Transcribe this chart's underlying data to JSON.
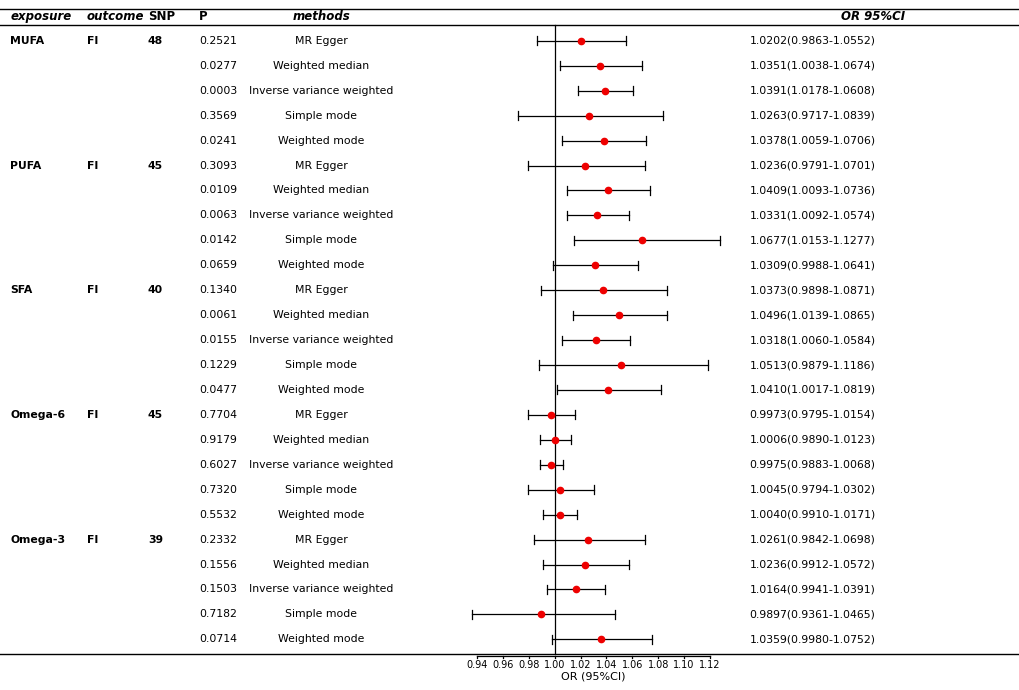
{
  "rows": [
    {
      "exposure": "MUFA",
      "outcome": "FI",
      "snp": "48",
      "p": "0.2521",
      "method": "MR Egger",
      "or": 1.0202,
      "ci_lo": 0.9863,
      "ci_hi": 1.0552,
      "ci_str": "1.0202(0.9863-1.0552)"
    },
    {
      "exposure": "",
      "outcome": "",
      "snp": "",
      "p": "0.0277",
      "method": "Weighted median",
      "or": 1.0351,
      "ci_lo": 1.0038,
      "ci_hi": 1.0674,
      "ci_str": "1.0351(1.0038-1.0674)"
    },
    {
      "exposure": "",
      "outcome": "",
      "snp": "",
      "p": "0.0003",
      "method": "Inverse variance weighted",
      "or": 1.0391,
      "ci_lo": 1.0178,
      "ci_hi": 1.0608,
      "ci_str": "1.0391(1.0178-1.0608)"
    },
    {
      "exposure": "",
      "outcome": "",
      "snp": "",
      "p": "0.3569",
      "method": "Simple mode",
      "or": 1.0263,
      "ci_lo": 0.9717,
      "ci_hi": 1.0839,
      "ci_str": "1.0263(0.9717-1.0839)"
    },
    {
      "exposure": "",
      "outcome": "",
      "snp": "",
      "p": "0.0241",
      "method": "Weighted mode",
      "or": 1.0378,
      "ci_lo": 1.0059,
      "ci_hi": 1.0706,
      "ci_str": "1.0378(1.0059-1.0706)"
    },
    {
      "exposure": "PUFA",
      "outcome": "FI",
      "snp": "45",
      "p": "0.3093",
      "method": "MR Egger",
      "or": 1.0236,
      "ci_lo": 0.9791,
      "ci_hi": 1.0701,
      "ci_str": "1.0236(0.9791-1.0701)"
    },
    {
      "exposure": "",
      "outcome": "",
      "snp": "",
      "p": "0.0109",
      "method": "Weighted median",
      "or": 1.0409,
      "ci_lo": 1.0093,
      "ci_hi": 1.0736,
      "ci_str": "1.0409(1.0093-1.0736)"
    },
    {
      "exposure": "",
      "outcome": "",
      "snp": "",
      "p": "0.0063",
      "method": "Inverse variance weighted",
      "or": 1.0331,
      "ci_lo": 1.0092,
      "ci_hi": 1.0574,
      "ci_str": "1.0331(1.0092-1.0574)"
    },
    {
      "exposure": "",
      "outcome": "",
      "snp": "",
      "p": "0.0142",
      "method": "Simple mode",
      "or": 1.0677,
      "ci_lo": 1.0153,
      "ci_hi": 1.1277,
      "ci_str": "1.0677(1.0153-1.1277)"
    },
    {
      "exposure": "",
      "outcome": "",
      "snp": "",
      "p": "0.0659",
      "method": "Weighted mode",
      "or": 1.0309,
      "ci_lo": 0.9988,
      "ci_hi": 1.0641,
      "ci_str": "1.0309(0.9988-1.0641)"
    },
    {
      "exposure": "SFA",
      "outcome": "FI",
      "snp": "40",
      "p": "0.1340",
      "method": "MR Egger",
      "or": 1.0373,
      "ci_lo": 0.9898,
      "ci_hi": 1.0871,
      "ci_str": "1.0373(0.9898-1.0871)"
    },
    {
      "exposure": "",
      "outcome": "",
      "snp": "",
      "p": "0.0061",
      "method": "Weighted median",
      "or": 1.0496,
      "ci_lo": 1.0139,
      "ci_hi": 1.0865,
      "ci_str": "1.0496(1.0139-1.0865)"
    },
    {
      "exposure": "",
      "outcome": "",
      "snp": "",
      "p": "0.0155",
      "method": "Inverse variance weighted",
      "or": 1.0318,
      "ci_lo": 1.006,
      "ci_hi": 1.0584,
      "ci_str": "1.0318(1.0060-1.0584)"
    },
    {
      "exposure": "",
      "outcome": "",
      "snp": "",
      "p": "0.1229",
      "method": "Simple mode",
      "or": 1.0513,
      "ci_lo": 0.9879,
      "ci_hi": 1.1186,
      "ci_str": "1.0513(0.9879-1.1186)"
    },
    {
      "exposure": "",
      "outcome": "",
      "snp": "",
      "p": "0.0477",
      "method": "Weighted mode",
      "or": 1.041,
      "ci_lo": 1.0017,
      "ci_hi": 1.0819,
      "ci_str": "1.0410(1.0017-1.0819)"
    },
    {
      "exposure": "Omega-6",
      "outcome": "FI",
      "snp": "45",
      "p": "0.7704",
      "method": "MR Egger",
      "or": 0.9973,
      "ci_lo": 0.9795,
      "ci_hi": 1.0154,
      "ci_str": "0.9973(0.9795-1.0154)"
    },
    {
      "exposure": "",
      "outcome": "",
      "snp": "",
      "p": "0.9179",
      "method": "Weighted median",
      "or": 1.0006,
      "ci_lo": 0.989,
      "ci_hi": 1.0123,
      "ci_str": "1.0006(0.9890-1.0123)"
    },
    {
      "exposure": "",
      "outcome": "",
      "snp": "",
      "p": "0.6027",
      "method": "Inverse variance weighted",
      "or": 0.9975,
      "ci_lo": 0.9883,
      "ci_hi": 1.0068,
      "ci_str": "0.9975(0.9883-1.0068)"
    },
    {
      "exposure": "",
      "outcome": "",
      "snp": "",
      "p": "0.7320",
      "method": "Simple mode",
      "or": 1.0045,
      "ci_lo": 0.9794,
      "ci_hi": 1.0302,
      "ci_str": "1.0045(0.9794-1.0302)"
    },
    {
      "exposure": "",
      "outcome": "",
      "snp": "",
      "p": "0.5532",
      "method": "Weighted mode",
      "or": 1.004,
      "ci_lo": 0.991,
      "ci_hi": 1.0171,
      "ci_str": "1.0040(0.9910-1.0171)"
    },
    {
      "exposure": "Omega-3",
      "outcome": "FI",
      "snp": "39",
      "p": "0.2332",
      "method": "MR Egger",
      "or": 1.0261,
      "ci_lo": 0.9842,
      "ci_hi": 1.0698,
      "ci_str": "1.0261(0.9842-1.0698)"
    },
    {
      "exposure": "",
      "outcome": "",
      "snp": "",
      "p": "0.1556",
      "method": "Weighted median",
      "or": 1.0236,
      "ci_lo": 0.9912,
      "ci_hi": 1.0572,
      "ci_str": "1.0236(0.9912-1.0572)"
    },
    {
      "exposure": "",
      "outcome": "",
      "snp": "",
      "p": "0.1503",
      "method": "Inverse variance weighted",
      "or": 1.0164,
      "ci_lo": 0.9941,
      "ci_hi": 1.0391,
      "ci_str": "1.0164(0.9941-1.0391)"
    },
    {
      "exposure": "",
      "outcome": "",
      "snp": "",
      "p": "0.7182",
      "method": "Simple mode",
      "or": 0.9897,
      "ci_lo": 0.9361,
      "ci_hi": 1.0465,
      "ci_str": "0.9897(0.9361-1.0465)"
    },
    {
      "exposure": "",
      "outcome": "",
      "snp": "",
      "p": "0.0714",
      "method": "Weighted mode",
      "or": 1.0359,
      "ci_lo": 0.998,
      "ci_hi": 1.0752,
      "ci_str": "1.0359(0.9980-1.0752)"
    }
  ],
  "xlabel": "OR (95%CI)",
  "xmin": 0.93,
  "xmax": 1.135,
  "xticks": [
    0.94,
    0.96,
    0.98,
    1.0,
    1.02,
    1.04,
    1.06,
    1.08,
    1.1,
    1.12
  ],
  "ref_line": 1.0,
  "dot_color": "#ee0000",
  "line_color": "#000000",
  "bg_color": "#ffffff",
  "font_size": 7.8,
  "header_font_size": 8.5,
  "col_x": {
    "exposure": 0.01,
    "outcome": 0.085,
    "snp": 0.145,
    "p": 0.195,
    "method": 0.315,
    "forest_l": 0.455,
    "forest_r": 0.715,
    "ci_text": 0.735
  }
}
